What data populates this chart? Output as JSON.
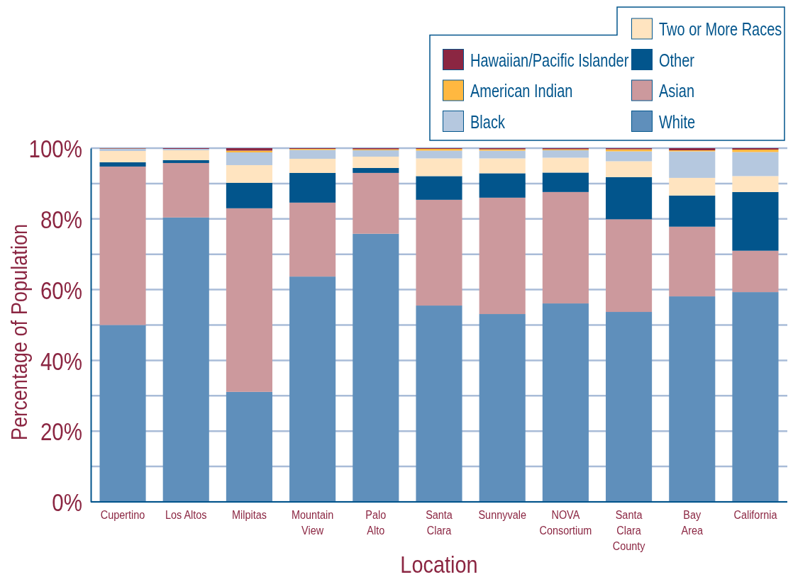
{
  "chart_data": {
    "type": "bar",
    "stacked": true,
    "xlabel": "Location",
    "ylabel": "Percentage of Population",
    "categories": [
      "Cupertino",
      "Los Altos",
      "Milpitas",
      "Mountain\nView",
      "Palo\nAlto",
      "Santa\nClara",
      "Sunnyvale",
      "NOVA\nConsortium",
      "Santa\nClara\nCounty",
      "Bay\nArea",
      "California"
    ],
    "series": [
      {
        "name": "White",
        "color": "#5f8fbb",
        "values": [
          50.0,
          80.4,
          31.1,
          63.7,
          75.8,
          55.5,
          53.1,
          56.1,
          53.7,
          58.1,
          59.3
        ]
      },
      {
        "name": "Asian",
        "color": "#cc999d",
        "values": [
          44.8,
          15.4,
          51.9,
          20.9,
          17.2,
          29.9,
          32.9,
          31.5,
          26.2,
          19.7,
          11.7
        ]
      },
      {
        "name": "Other",
        "color": "#02558c",
        "values": [
          1.2,
          0.8,
          7.2,
          8.4,
          1.4,
          6.7,
          6.9,
          5.5,
          11.9,
          8.8,
          16.6
        ]
      },
      {
        "name": "Two or More Races",
        "color": "#ffe4c0",
        "values": [
          3.2,
          2.8,
          5.0,
          4.0,
          3.2,
          5.0,
          4.2,
          4.2,
          4.5,
          5.0,
          4.5
        ]
      },
      {
        "name": "Black",
        "color": "#b5c8df",
        "values": [
          0.6,
          0.4,
          3.6,
          2.5,
          1.8,
          2.2,
          2.2,
          2.1,
          2.8,
          7.5,
          6.8
        ]
      },
      {
        "name": "American Indian",
        "color": "#ffb840",
        "values": [
          0.1,
          0.0,
          0.5,
          0.3,
          0.3,
          0.5,
          0.4,
          0.3,
          0.6,
          0.3,
          0.7
        ]
      },
      {
        "name": "Hawaiian/Pacific Islander",
        "color": "#8b2642",
        "values": [
          0.1,
          0.2,
          0.7,
          0.2,
          0.3,
          0.2,
          0.3,
          0.3,
          0.3,
          0.6,
          0.4
        ]
      }
    ],
    "ylim": [
      0,
      100
    ],
    "yticks": [
      {
        "value": 0,
        "label": "0%"
      },
      {
        "value": 10,
        "label": null
      },
      {
        "value": 20,
        "label": "20%"
      },
      {
        "value": 30,
        "label": null
      },
      {
        "value": 40,
        "label": "40%"
      },
      {
        "value": 50,
        "label": null
      },
      {
        "value": 60,
        "label": "60%"
      },
      {
        "value": 70,
        "label": null
      },
      {
        "value": 80,
        "label": "80%"
      },
      {
        "value": 90,
        "label": null
      },
      {
        "value": 100,
        "label": "100%"
      }
    ],
    "grid": "y",
    "legend": "top right"
  }
}
